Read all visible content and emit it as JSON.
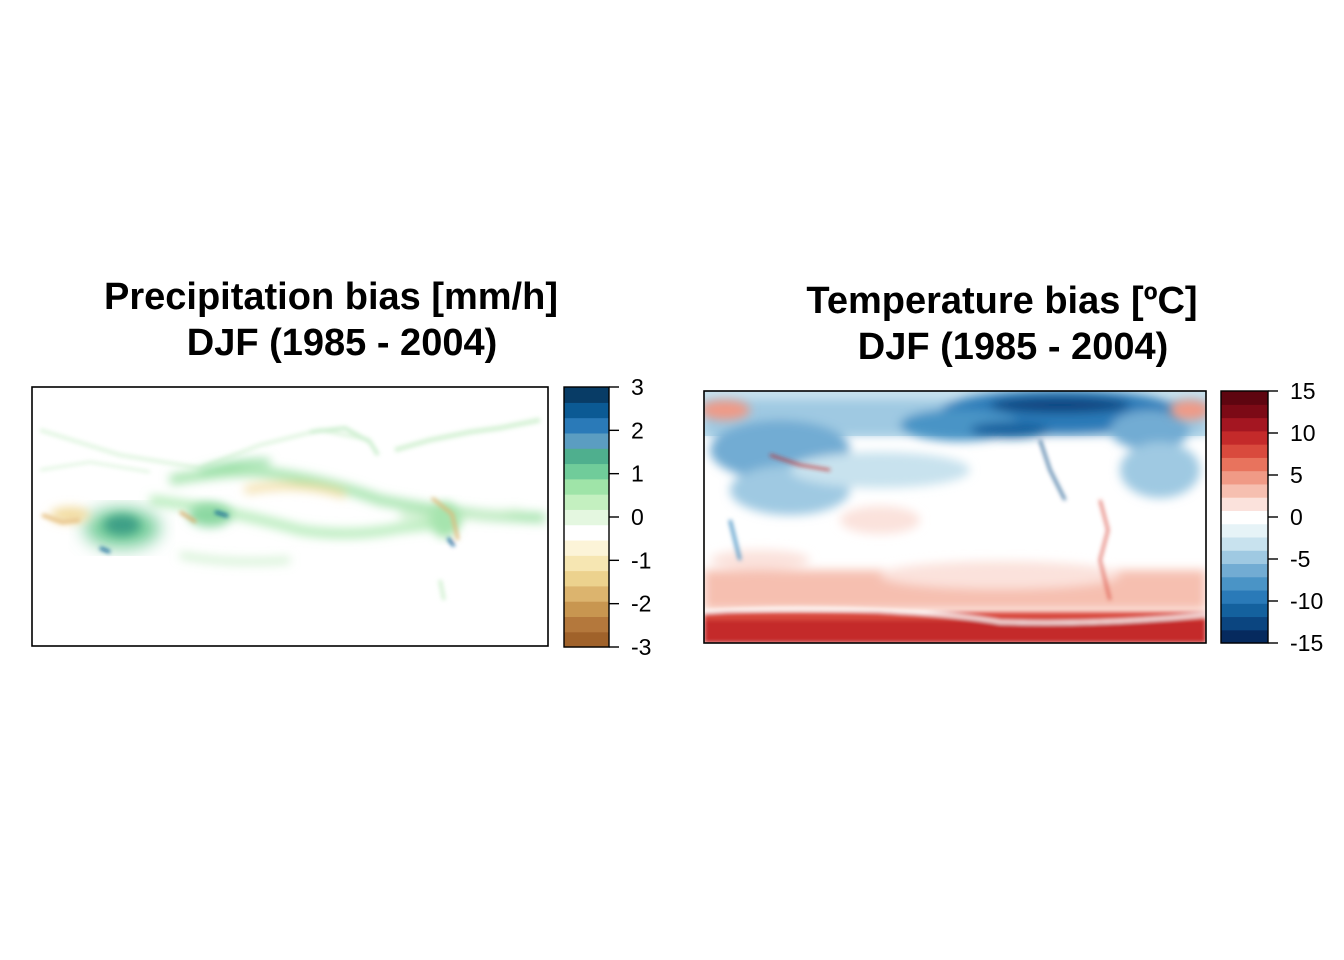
{
  "chart_data": [
    {
      "type": "heatmap",
      "title": "Precipitation bias [mm/h]",
      "subtitle": "DJF (1985 - 2004)",
      "xlabel": "",
      "ylabel": "",
      "grid": false,
      "legend": "right",
      "colorbar": {
        "range": [
          -3,
          3
        ],
        "ticks": [
          "3",
          "2",
          "1",
          "0",
          "-1",
          "-2",
          "-3"
        ],
        "colors": [
          "#a0622a",
          "#b4783c",
          "#c89650",
          "#dcb46e",
          "#ecd28e",
          "#f6e6b2",
          "#fcf4d8",
          "#ffffff",
          "#e4f7e0",
          "#c4f0c0",
          "#9fe4a8",
          "#70cc9a",
          "#4faf8e",
          "#5b9dc1",
          "#2a7ab8",
          "#0b5a94",
          "#083c66"
        ]
      }
    },
    {
      "type": "heatmap",
      "title": "Temperature bias [ºC]",
      "subtitle": "DJF (1985 - 2004)",
      "xlabel": "",
      "ylabel": "",
      "grid": false,
      "legend": "right",
      "colorbar": {
        "range": [
          -15,
          15
        ],
        "ticks": [
          "15",
          "10",
          "5",
          "0",
          "-5",
          "-10",
          "-15"
        ],
        "colors": [
          "#062a5e",
          "#0b4580",
          "#14619e",
          "#2a7ab8",
          "#4a94c6",
          "#72acd3",
          "#9fc9e2",
          "#c8e2ee",
          "#e6f3f7",
          "#ffffff",
          "#fbe2dc",
          "#f6bfb0",
          "#f09a86",
          "#e8735d",
          "#d94a3d",
          "#c42a2a",
          "#a41621",
          "#7c0a16",
          "#5e0510"
        ]
      }
    }
  ]
}
